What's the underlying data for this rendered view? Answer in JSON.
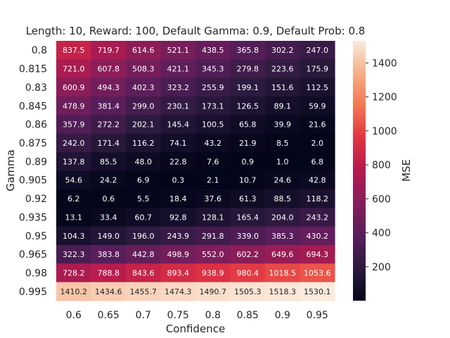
{
  "chart_data": {
    "type": "heatmap",
    "title": "Length: 10, Reward: 100, Default Gamma: 0.9, Default Prob: 0.8",
    "xlabel": "Confidence",
    "ylabel": "Gamma",
    "x_categories": [
      "0.6",
      "0.65",
      "0.7",
      "0.75",
      "0.8",
      "0.85",
      "0.9",
      "0.95"
    ],
    "y_categories": [
      "0.8",
      "0.815",
      "0.83",
      "0.845",
      "0.86",
      "0.875",
      "0.89",
      "0.905",
      "0.92",
      "0.935",
      "0.95",
      "0.965",
      "0.98",
      "0.995"
    ],
    "values": [
      [
        837.5,
        719.7,
        614.6,
        521.1,
        438.5,
        365.8,
        302.2,
        247.0
      ],
      [
        721.0,
        607.8,
        508.3,
        421.1,
        345.3,
        279.8,
        223.6,
        175.9
      ],
      [
        600.9,
        494.3,
        402.3,
        323.2,
        255.9,
        199.1,
        151.6,
        112.5
      ],
      [
        478.9,
        381.4,
        299.0,
        230.1,
        173.1,
        126.5,
        89.1,
        59.9
      ],
      [
        357.9,
        272.2,
        202.1,
        145.4,
        100.5,
        65.8,
        39.9,
        21.6
      ],
      [
        242.0,
        171.4,
        116.2,
        74.1,
        43.2,
        21.9,
        8.5,
        2.0
      ],
      [
        137.8,
        85.5,
        48.0,
        22.8,
        7.6,
        0.9,
        1.0,
        6.8
      ],
      [
        54.6,
        24.2,
        6.9,
        0.3,
        2.1,
        10.7,
        24.6,
        42.8
      ],
      [
        6.2,
        0.6,
        5.5,
        18.4,
        37.6,
        61.3,
        88.5,
        118.2
      ],
      [
        13.1,
        33.4,
        60.7,
        92.8,
        128.1,
        165.4,
        204.0,
        243.2
      ],
      [
        104.3,
        149.0,
        196.0,
        243.9,
        291.8,
        339.0,
        385.3,
        430.2
      ],
      [
        322.3,
        383.8,
        442.8,
        498.9,
        552.0,
        602.2,
        649.6,
        694.3
      ],
      [
        728.2,
        788.8,
        843.6,
        893.4,
        938.9,
        980.4,
        1018.5,
        1053.6
      ],
      [
        1410.2,
        1434.6,
        1455.7,
        1474.3,
        1490.7,
        1505.3,
        1518.3,
        1530.1
      ]
    ],
    "colorbar": {
      "label": "MSE",
      "range": [
        0.3,
        1530.1
      ],
      "ticks": [
        200,
        400,
        600,
        800,
        1000,
        1200,
        1400
      ],
      "colormap": "rocket"
    },
    "grid": false
  }
}
